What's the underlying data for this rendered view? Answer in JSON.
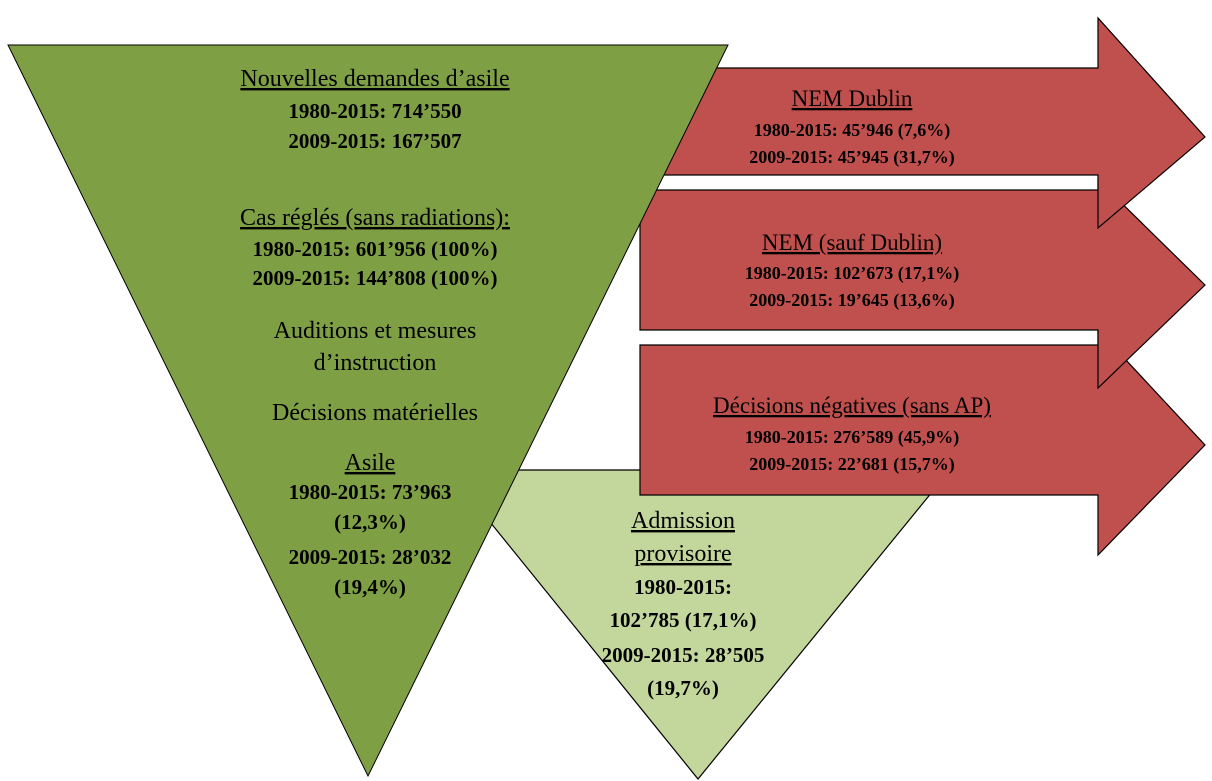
{
  "main": {
    "title": "Nouvelles demandes d’asile",
    "lines": [
      "1980-2015: 714’550",
      "2009-2015: 167’507"
    ]
  },
  "settled": {
    "title": "Cas réglés (sans radiations):",
    "lines": [
      "1980-2015: 601’956 (100%)",
      "2009-2015: 144’808 (100%)"
    ]
  },
  "steps": [
    "Auditions et mesures",
    "d’instruction",
    "Décisions matérielles"
  ],
  "asylum": {
    "title": "Asile",
    "lines": [
      "1980-2015: 73’963",
      "(12,3%)",
      "2009-2015: 28’032",
      "(19,4%)"
    ]
  },
  "arrows": [
    {
      "title": "NEM Dublin",
      "lines": [
        "1980-2015: 45’946 (7,6%)",
        "2009-2015: 45’945 (31,7%)"
      ]
    },
    {
      "title": "NEM (sauf Dublin)",
      "lines": [
        "1980-2015: 102’673 (17,1%)",
        "2009-2015: 19’645 (13,6%)"
      ]
    },
    {
      "title": "Décisions négatives (sans AP)",
      "lines": [
        "1980-2015: 276’589 (45,9%)",
        "2009-2015: 22’681 (15,7%)"
      ]
    }
  ],
  "provisional": {
    "title": [
      "Admission",
      "provisoire"
    ],
    "lines": [
      "1980-2015:",
      "102’785 (17,1%)",
      "2009-2015: 28’505",
      "(19,7%)"
    ]
  }
}
